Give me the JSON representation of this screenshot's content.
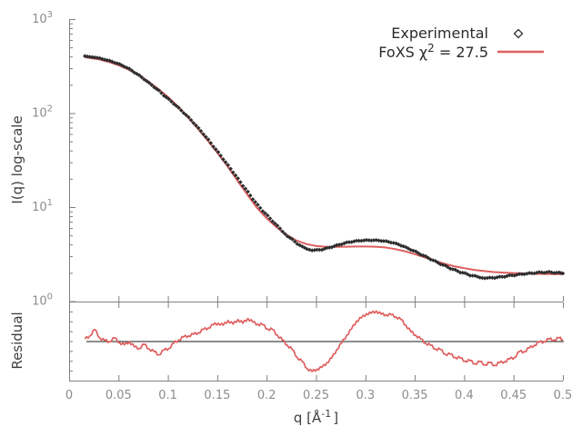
{
  "figure": {
    "background": "#ffffff",
    "xlabel": {
      "prefix": "q [Å",
      "sup": "-1",
      "suffix": "]"
    },
    "ylabel_main": "I(q) log-scale",
    "ylabel_residual": "Residual",
    "x_tick_labels": [
      "0",
      "0.05",
      "0.1",
      "0.15",
      "0.2",
      "0.25",
      "0.3",
      "0.35",
      "0.4",
      "0.45",
      "0.5"
    ],
    "x_tick_values": [
      0,
      0.05,
      0.1,
      0.15,
      0.2,
      0.25,
      0.3,
      0.35,
      0.4,
      0.45,
      0.5
    ],
    "y_tick_labels_main": [
      {
        "base": "10",
        "exp": "0",
        "value": 1
      },
      {
        "base": "10",
        "exp": "1",
        "value": 10
      },
      {
        "base": "10",
        "exp": "2",
        "value": 100
      },
      {
        "base": "10",
        "exp": "3",
        "value": 1000
      }
    ],
    "colors": {
      "experimental": "#2e2e2e",
      "fit": "#df5f5f",
      "frame": "#808080",
      "tick_label": "#8c8c8c",
      "axis_title": "#3f3f3f",
      "legend_text": "#2b2b2b",
      "residual_center_line": "#1a1a1a"
    },
    "legend": {
      "entries": [
        {
          "prefix": "Experimental",
          "sup": "",
          "suffix": "",
          "marker": "diamond"
        },
        {
          "prefix": "FoXS χ",
          "sup": "2",
          "suffix": " = 27.5",
          "marker": "line"
        }
      ]
    }
  },
  "chart_data": [
    {
      "panel": "main",
      "type": "scatter",
      "title": "",
      "xlabel": "q [Å^-1]",
      "ylabel": "I(q) log-scale",
      "xlim": [
        0,
        0.5
      ],
      "ylim": [
        1,
        1000
      ],
      "yscale": "log",
      "grid": false,
      "legend_position": "top-right",
      "series": [
        {
          "name": "Experimental",
          "style": "points",
          "marker": "diamond",
          "color": "#2e2e2e",
          "q": [
            0.016,
            0.021,
            0.026,
            0.031,
            0.036,
            0.041,
            0.046,
            0.051,
            0.056,
            0.061,
            0.066,
            0.071,
            0.076,
            0.081,
            0.086,
            0.091,
            0.096,
            0.101,
            0.106,
            0.111,
            0.116,
            0.121,
            0.126,
            0.131,
            0.136,
            0.141,
            0.146,
            0.151,
            0.156,
            0.161,
            0.166,
            0.171,
            0.176,
            0.181,
            0.186,
            0.191,
            0.196,
            0.201,
            0.206,
            0.211,
            0.216,
            0.221,
            0.226,
            0.231,
            0.236,
            0.241,
            0.246,
            0.251,
            0.256,
            0.261,
            0.266,
            0.271,
            0.276,
            0.281,
            0.286,
            0.291,
            0.296,
            0.301,
            0.306,
            0.311,
            0.316,
            0.321,
            0.326,
            0.331,
            0.336,
            0.341,
            0.346,
            0.351,
            0.356,
            0.361,
            0.366,
            0.371,
            0.376,
            0.381,
            0.386,
            0.391,
            0.396,
            0.401,
            0.406,
            0.411,
            0.416,
            0.421,
            0.426,
            0.431,
            0.436,
            0.441,
            0.446,
            0.451,
            0.456,
            0.461,
            0.466,
            0.471,
            0.476,
            0.481,
            0.486,
            0.491,
            0.496,
            0.5
          ],
          "I": [
            404,
            396,
            391,
            384,
            370,
            362,
            344,
            333,
            312,
            297,
            270,
            253,
            228,
            210,
            188,
            174,
            153,
            141,
            125,
            114,
            100,
            90.5,
            78.5,
            69.5,
            59.5,
            52.5,
            44.0,
            38.5,
            32.2,
            28.0,
            23.4,
            20.2,
            16.8,
            14.6,
            12.1,
            10.6,
            9.05,
            8.15,
            7.05,
            6.35,
            5.5,
            4.9,
            4.55,
            4.05,
            3.82,
            3.58,
            3.46,
            3.52,
            3.51,
            3.68,
            3.74,
            3.95,
            4.02,
            4.22,
            4.25,
            4.39,
            4.38,
            4.47,
            4.41,
            4.46,
            4.36,
            4.35,
            4.19,
            4.12,
            3.89,
            3.76,
            3.5,
            3.38,
            3.12,
            3.01,
            2.77,
            2.67,
            2.46,
            2.39,
            2.21,
            2.16,
            2.01,
            1.99,
            1.87,
            1.86,
            1.78,
            1.75,
            1.78,
            1.76,
            1.82,
            1.81,
            1.89,
            1.87,
            1.94,
            1.93,
            1.99,
            1.97,
            2.04,
            2.0,
            2.05,
            1.99,
            2.02,
            1.97
          ]
        },
        {
          "name": "FoXS χ2 = 27.5",
          "style": "line",
          "color": "#df5f5f",
          "chi2": 27.5,
          "q": [
            0.016,
            0.02,
            0.03,
            0.04,
            0.05,
            0.06,
            0.07,
            0.08,
            0.09,
            0.1,
            0.11,
            0.12,
            0.13,
            0.14,
            0.15,
            0.16,
            0.17,
            0.18,
            0.19,
            0.2,
            0.21,
            0.22,
            0.23,
            0.24,
            0.25,
            0.26,
            0.27,
            0.28,
            0.29,
            0.3,
            0.31,
            0.32,
            0.33,
            0.34,
            0.35,
            0.36,
            0.37,
            0.38,
            0.39,
            0.4,
            0.41,
            0.42,
            0.43,
            0.44,
            0.45,
            0.46,
            0.47,
            0.48,
            0.49,
            0.5
          ],
          "I": [
            393,
            388,
            373,
            351,
            323,
            291,
            255,
            218,
            182,
            149,
            118,
            91,
            69,
            51.5,
            38,
            27.5,
            19.5,
            13.8,
            9.9,
            7.6,
            6.1,
            5.1,
            4.42,
            4.05,
            3.86,
            3.78,
            3.77,
            3.79,
            3.81,
            3.81,
            3.79,
            3.72,
            3.58,
            3.39,
            3.16,
            2.92,
            2.69,
            2.5,
            2.35,
            2.24,
            2.15,
            2.09,
            2.04,
            2.01,
            1.99,
            1.97,
            1.955,
            1.945,
            1.935,
            1.93
          ]
        }
      ]
    },
    {
      "panel": "residual",
      "type": "line",
      "ylabel": "Residual",
      "xlim": [
        0,
        0.5
      ],
      "yscale": "linear",
      "ylim": [
        0.25,
        1.75
      ],
      "center_line": 1.0,
      "y_ticks_labeled": false,
      "series": [
        {
          "name": "Residual",
          "color": "#df5f5f",
          "q": [
            0.016,
            0.021,
            0.026,
            0.031,
            0.036,
            0.041,
            0.046,
            0.051,
            0.056,
            0.061,
            0.066,
            0.071,
            0.076,
            0.081,
            0.086,
            0.091,
            0.096,
            0.101,
            0.106,
            0.111,
            0.116,
            0.121,
            0.126,
            0.131,
            0.136,
            0.141,
            0.146,
            0.151,
            0.156,
            0.161,
            0.166,
            0.171,
            0.176,
            0.181,
            0.186,
            0.191,
            0.196,
            0.201,
            0.206,
            0.211,
            0.216,
            0.221,
            0.226,
            0.231,
            0.236,
            0.241,
            0.246,
            0.251,
            0.256,
            0.261,
            0.266,
            0.271,
            0.276,
            0.281,
            0.286,
            0.291,
            0.296,
            0.301,
            0.306,
            0.311,
            0.316,
            0.321,
            0.326,
            0.331,
            0.336,
            0.341,
            0.346,
            0.351,
            0.356,
            0.361,
            0.366,
            0.371,
            0.376,
            0.381,
            0.386,
            0.391,
            0.396,
            0.401,
            0.406,
            0.411,
            0.416,
            0.421,
            0.426,
            0.431,
            0.436,
            0.441,
            0.446,
            0.451,
            0.456,
            0.461,
            0.466,
            0.471,
            0.476,
            0.481,
            0.486,
            0.491,
            0.496,
            0.5
          ],
          "value": [
            1.04,
            1.1,
            1.22,
            1.06,
            1.01,
            0.99,
            1.06,
            0.97,
            0.93,
            0.99,
            0.89,
            0.86,
            0.94,
            0.85,
            0.8,
            0.74,
            0.83,
            0.86,
            0.96,
            1.02,
            1.08,
            1.1,
            1.13,
            1.16,
            1.22,
            1.25,
            1.31,
            1.34,
            1.3,
            1.39,
            1.32,
            1.41,
            1.34,
            1.43,
            1.36,
            1.32,
            1.31,
            1.23,
            1.22,
            1.11,
            1.02,
            0.92,
            0.84,
            0.69,
            0.61,
            0.48,
            0.42,
            0.47,
            0.5,
            0.59,
            0.68,
            0.84,
            0.96,
            1.11,
            1.23,
            1.38,
            1.44,
            1.52,
            1.53,
            1.57,
            1.51,
            1.5,
            1.5,
            1.46,
            1.41,
            1.3,
            1.18,
            1.11,
            1.04,
            0.96,
            0.92,
            0.85,
            0.84,
            0.75,
            0.75,
            0.69,
            0.68,
            0.62,
            0.63,
            0.57,
            0.61,
            0.55,
            0.59,
            0.54,
            0.59,
            0.61,
            0.66,
            0.69,
            0.8,
            0.8,
            0.87,
            0.92,
            0.98,
            0.99,
            1.04,
            1.02,
            1.06,
            1.03
          ]
        }
      ]
    }
  ]
}
